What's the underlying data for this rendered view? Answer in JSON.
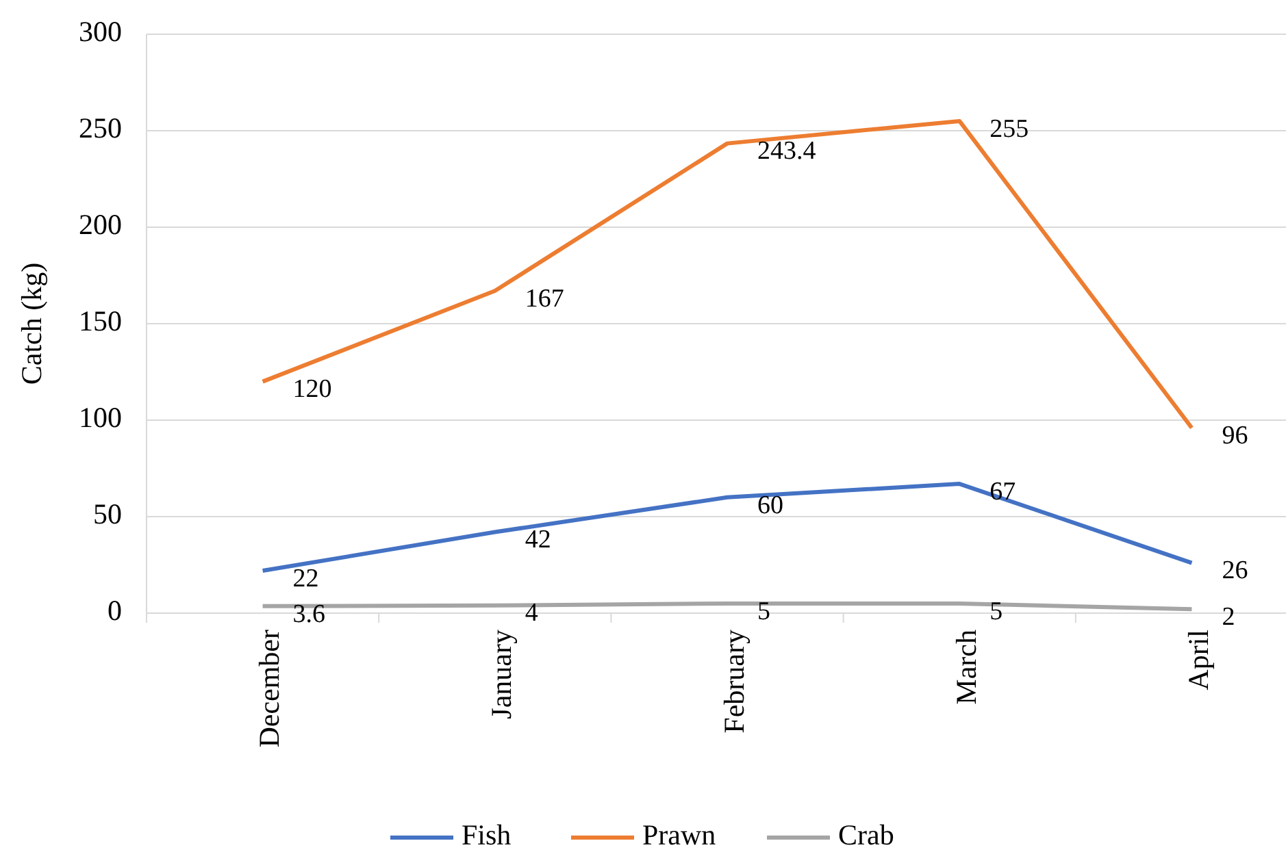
{
  "chart_data": {
    "type": "line",
    "ylabel": "Catch (kg)",
    "categories": [
      "December",
      "January",
      "February",
      "March",
      "April"
    ],
    "series": [
      {
        "name": "Fish",
        "color": "#4472c4",
        "values": [
          22,
          42,
          60,
          67,
          26
        ]
      },
      {
        "name": "Prawn",
        "color": "#ed7d31",
        "values": [
          120,
          167,
          243.4,
          255,
          96
        ]
      },
      {
        "name": "Crab",
        "color": "#a5a5a5",
        "values": [
          3.6,
          4,
          5,
          5,
          2
        ]
      }
    ],
    "ylim": [
      0,
      300
    ],
    "yticks": [
      0,
      50,
      100,
      150,
      200,
      250,
      300
    ],
    "grid": "y",
    "legend": "bottom",
    "data_labels": true,
    "marker": "none",
    "line_style": "solid"
  }
}
